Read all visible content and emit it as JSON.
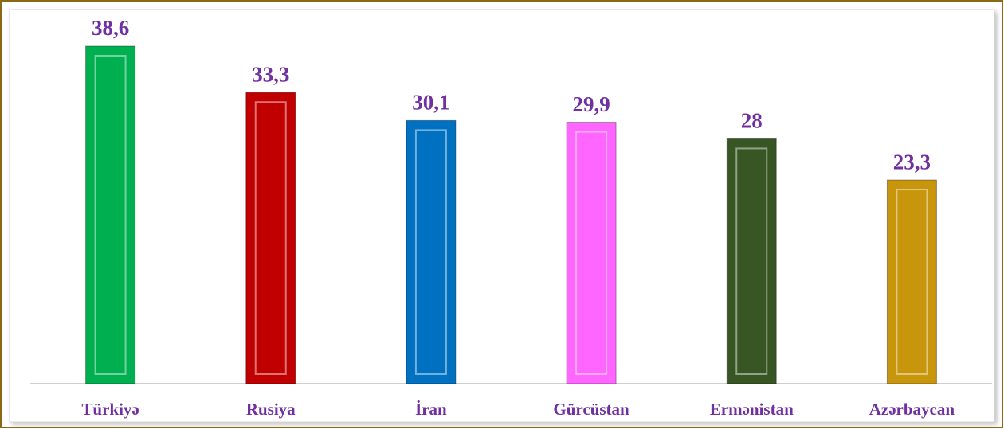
{
  "chart_data": {
    "type": "bar",
    "categories": [
      "Türkiyə",
      "Rusiya",
      "İran",
      "Gürcüstan",
      "Ermənistan",
      "Azərbaycan"
    ],
    "values": [
      38.6,
      33.3,
      30.1,
      29.9,
      28,
      23.3
    ],
    "value_labels": [
      "38,6",
      "33,3",
      "30,1",
      "29,9",
      "28",
      "23,3"
    ],
    "colors": [
      "#00b050",
      "#c00000",
      "#0070c0",
      "#ff66ff",
      "#375623",
      "#c8960c"
    ]
  }
}
